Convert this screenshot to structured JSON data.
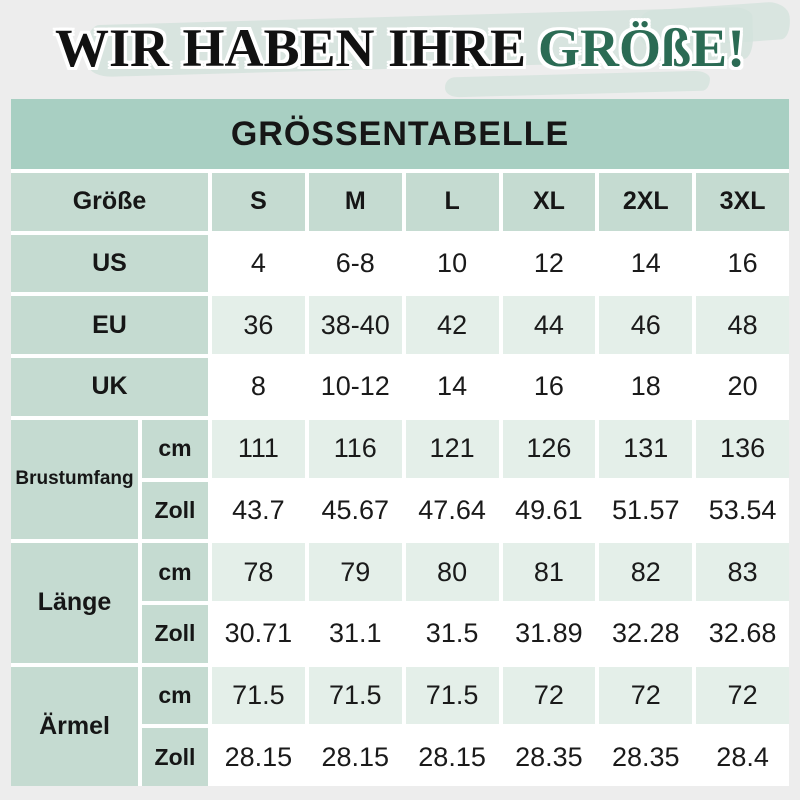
{
  "title": {
    "black_part": "WIR HABEN IHRE",
    "green_part": "GRÖßE!"
  },
  "table": {
    "header": "GRÖSSENTABELLE",
    "size_row": {
      "label": "Größe",
      "sizes": [
        "S",
        "M",
        "L",
        "XL",
        "2XL",
        "3XL"
      ]
    },
    "simple_rows": [
      {
        "label": "US",
        "values": [
          "4",
          "6-8",
          "10",
          "12",
          "14",
          "16"
        ]
      },
      {
        "label": "EU",
        "values": [
          "36",
          "38-40",
          "42",
          "44",
          "46",
          "48"
        ]
      },
      {
        "label": "UK",
        "values": [
          "8",
          "10-12",
          "14",
          "16",
          "18",
          "20"
        ]
      }
    ],
    "group_rows": [
      {
        "label": "Brustumfang",
        "sub": [
          {
            "unit": "cm",
            "values": [
              "111",
              "116",
              "121",
              "126",
              "131",
              "136"
            ]
          },
          {
            "unit": "Zoll",
            "values": [
              "43.7",
              "45.67",
              "47.64",
              "49.61",
              "51.57",
              "53.54"
            ]
          }
        ]
      },
      {
        "label": "Länge",
        "sub": [
          {
            "unit": "cm",
            "values": [
              "78",
              "79",
              "80",
              "81",
              "82",
              "83"
            ]
          },
          {
            "unit": "Zoll",
            "values": [
              "30.71",
              "31.1",
              "31.5",
              "31.89",
              "32.28",
              "32.68"
            ]
          }
        ]
      },
      {
        "label": "Ärmel",
        "sub": [
          {
            "unit": "cm",
            "values": [
              "71.5",
              "71.5",
              "71.5",
              "72",
              "72",
              "72"
            ]
          },
          {
            "unit": "Zoll",
            "values": [
              "28.15",
              "28.15",
              "28.15",
              "28.35",
              "28.35",
              "28.4"
            ]
          }
        ]
      }
    ]
  },
  "colors": {
    "bg": "#ededed",
    "band": "#a8cfc2",
    "green-cell": "#c5dbd1",
    "tint-cell": "#e4efe9",
    "white-cell": "#ffffff",
    "ink": "#161616",
    "title-black": "#111111",
    "title-green": "#2b6b54",
    "brush": "#d3e2dc"
  }
}
